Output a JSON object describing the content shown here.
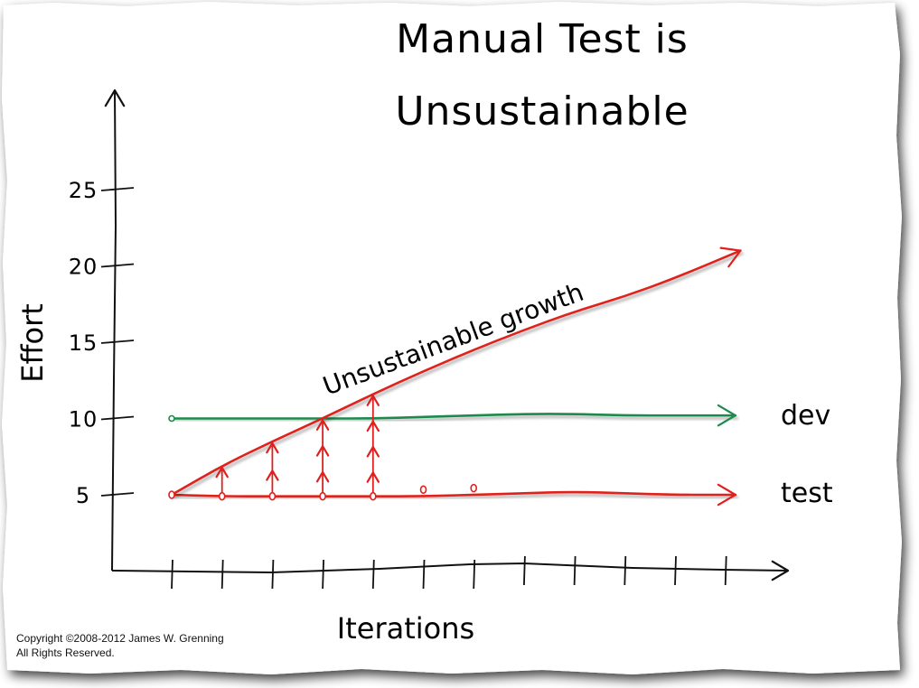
{
  "title_lines": [
    "Manual Test is",
    "Unsustainable"
  ],
  "copyright_lines": [
    "Copyright ©2008-2012 James W. Grenning",
    "All Rights Reserved."
  ],
  "colors": {
    "paper": "#ffffff",
    "paper_shadow": "#3a3a3a",
    "axis": "#111111",
    "dev": "#1f8a4c",
    "test": "#e0201e",
    "growth": "#e0201e"
  },
  "chart_data": {
    "type": "line",
    "title": "Manual Test is Unsustainable",
    "xlabel": "Iterations",
    "ylabel": "Effort",
    "yticks": [
      5,
      10,
      15,
      20,
      25
    ],
    "xticks": [
      1,
      2,
      3,
      4,
      5,
      6,
      7,
      8,
      9,
      10,
      11,
      12
    ],
    "xlim": [
      0,
      13
    ],
    "ylim": [
      0,
      31
    ],
    "grid": false,
    "legend": "none",
    "series": [
      {
        "name": "dev",
        "color": "#1f8a4c",
        "x": [
          1,
          2,
          3,
          4,
          5,
          6,
          7,
          8,
          9,
          10,
          11,
          12.2
        ],
        "y": [
          10,
          10,
          10,
          10,
          10,
          10.1,
          10.2,
          10.3,
          10.3,
          10.2,
          10.2,
          10.2
        ]
      },
      {
        "name": "test",
        "color": "#e0201e",
        "x": [
          1,
          2,
          3,
          4,
          5,
          6,
          7,
          8,
          9,
          10,
          11,
          12.2
        ],
        "y": [
          5,
          4.9,
          4.9,
          4.9,
          4.9,
          4.9,
          5,
          5.1,
          5.2,
          5.1,
          5,
          5
        ]
      },
      {
        "name": "Unsustainable growth",
        "color": "#e0201e",
        "x": [
          1,
          2,
          3,
          4,
          5,
          6,
          7,
          8,
          9,
          10,
          11,
          12.3
        ],
        "y": [
          5,
          6.9,
          8.5,
          10,
          11.6,
          13.1,
          14.5,
          15.8,
          17,
          18,
          19.2,
          21
        ]
      }
    ],
    "test_markers": {
      "x": [
        1,
        2,
        3,
        4,
        5,
        6,
        7
      ],
      "y": [
        5,
        4.9,
        4.9,
        4.9,
        4.9,
        5.1,
        5.2
      ]
    },
    "growth_increments": [
      {
        "x": 2,
        "y_from": 4.9,
        "y_to": 6.9,
        "arrows": 1
      },
      {
        "x": 3,
        "y_from": 4.9,
        "y_to": 8.5,
        "arrows": 2
      },
      {
        "x": 4,
        "y_from": 4.9,
        "y_to": 10,
        "arrows": 3
      },
      {
        "x": 5,
        "y_from": 4.9,
        "y_to": 11.6,
        "arrows": 4
      }
    ],
    "annotations": [
      {
        "text": "Unsustainable growth"
      },
      {
        "text": "dev"
      },
      {
        "text": "test"
      }
    ]
  }
}
